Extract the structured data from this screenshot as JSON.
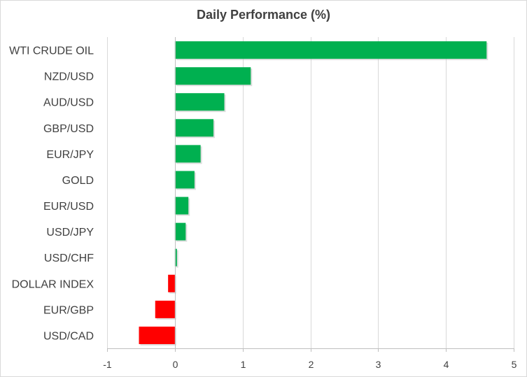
{
  "chart_data": {
    "type": "bar",
    "orientation": "horizontal",
    "title": "Daily Performance  (%)",
    "xlabel": "",
    "ylabel": "",
    "categories": [
      "WTI CRUDE OIL",
      "NZD/USD",
      "AUD/USD",
      "GBP/USD",
      "EUR/JPY",
      "GOLD",
      "EUR/USD",
      "USD/JPY",
      "USD/CHF",
      "DOLLAR INDEX",
      "EUR/GBP",
      "USD/CAD"
    ],
    "values": [
      4.6,
      1.12,
      0.73,
      0.57,
      0.38,
      0.29,
      0.2,
      0.16,
      0.03,
      -0.1,
      -0.29,
      -0.53
    ],
    "xlim": [
      -1,
      5
    ],
    "xticks": [
      "-1",
      "0",
      "1",
      "2",
      "3",
      "4",
      "5"
    ],
    "grid": true,
    "legend": "none",
    "colors": {
      "positive": "#00b050",
      "negative": "#ff0000",
      "grid": "#d9d9d9",
      "axis": "#bfbfbf",
      "text": "#404040"
    }
  }
}
